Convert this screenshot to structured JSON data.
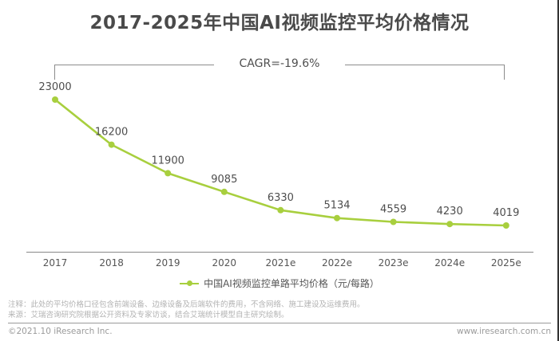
{
  "title": "2017-2025年中国AI视频监控平均价格情况",
  "cagr_label": "CAGR=-19.6%",
  "chart_data": {
    "type": "line",
    "title": "2017-2025年中国AI视频监控平均价格情况",
    "categories": [
      "2017",
      "2018",
      "2019",
      "2020",
      "2021e",
      "2022e",
      "2023e",
      "2024e",
      "2025e"
    ],
    "series": [
      {
        "name": "中国AI视频监控单路平均价格（元/每路）",
        "values": [
          23000,
          16200,
          11900,
          9085,
          6330,
          5134,
          4559,
          4230,
          4019
        ]
      }
    ],
    "annotations": [
      "CAGR=-19.6%"
    ],
    "data_labels": true,
    "grid": false,
    "legend_position": "bottom",
    "xlabel": "",
    "ylabel": "",
    "ylim": [
      0,
      25000
    ],
    "line_color": "#a8cf3e",
    "axis_color": "#888888"
  },
  "legend": {
    "label": "中国AI视频监控单路平均价格（元/每路）"
  },
  "notes": {
    "note": "注释：此处的平均价格口径包含前端设备、边缘设备及后端软件的费用，不含网络、施工建设及运维费用。",
    "source": "来源：艾瑞咨询研究院根据公开资料及专家访谈，结合艾瑞统计模型自主研究绘制。"
  },
  "footer": {
    "copyright": "©2021.10 iResearch Inc.",
    "website": "www.iresearch.com.cn"
  }
}
